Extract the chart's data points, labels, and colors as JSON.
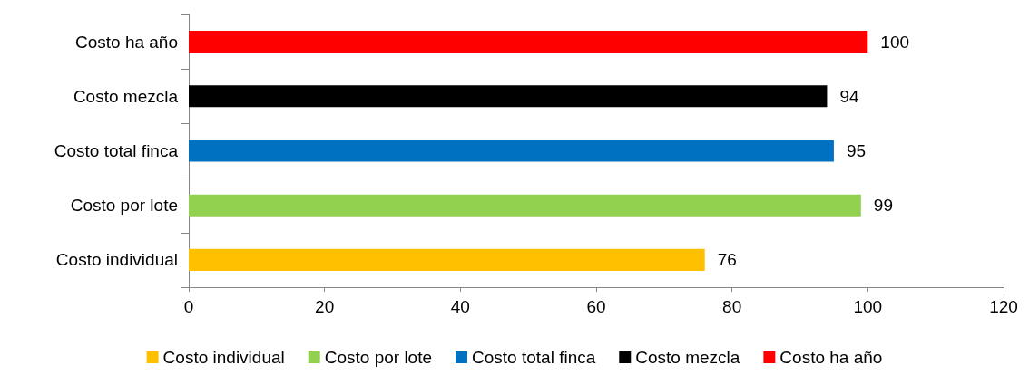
{
  "chart_data": {
    "type": "bar",
    "orientation": "horizontal",
    "stacked": true,
    "categories": [
      "Costo ha año",
      "Costo mezcla",
      "Costo total finca",
      "Costo por lote",
      "Costo individual"
    ],
    "series": [
      {
        "name": "Costo individual",
        "color": "#ffc000",
        "values": [
          null,
          null,
          null,
          null,
          76
        ]
      },
      {
        "name": "Costo por lote",
        "color": "#92d050",
        "values": [
          null,
          null,
          null,
          99,
          null
        ]
      },
      {
        "name": "Costo total finca",
        "color": "#0070c0",
        "values": [
          null,
          null,
          95,
          null,
          null
        ]
      },
      {
        "name": "Costo mezcla",
        "color": "#000000",
        "values": [
          null,
          94,
          null,
          null,
          null
        ]
      },
      {
        "name": "Costo ha año",
        "color": "#ff0000",
        "values": [
          100,
          null,
          null,
          null,
          null
        ]
      }
    ],
    "xlim": [
      0,
      120
    ],
    "xticks": [
      0,
      20,
      40,
      60,
      80,
      100,
      120
    ],
    "data_labels": true,
    "grid": false,
    "legend": "bottom"
  }
}
